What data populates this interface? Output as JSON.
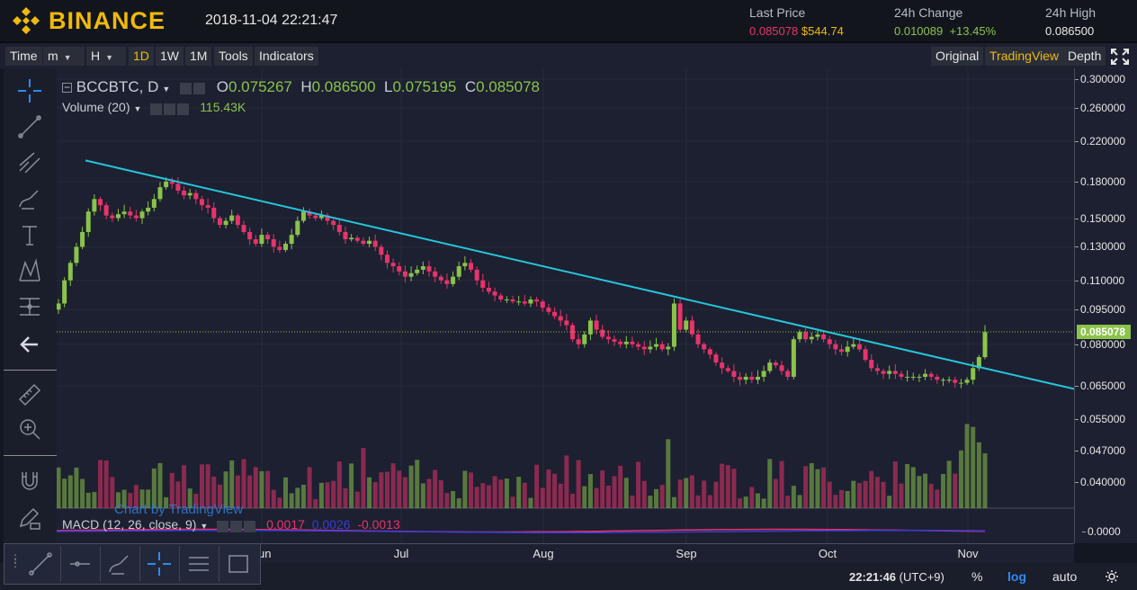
{
  "header": {
    "brand": "BINANCE",
    "datetime": "2018-11-04 22:21:47",
    "last_price_label": "Last Price",
    "last_price_btc": "0.085078",
    "last_price_usd": "$544.74",
    "change_label": "24h Change",
    "change_abs": "0.010089",
    "change_pct": "+13.45%",
    "high_label": "24h High",
    "high_value": "0.086500"
  },
  "toolbar": {
    "time": "Time",
    "minute": "m",
    "hour": "H",
    "d1": "1D",
    "w1": "1W",
    "m1": "1M",
    "tools": "Tools",
    "indicators": "Indicators",
    "original": "Original",
    "tradingview": "TradingView",
    "depth": "Depth"
  },
  "legend": {
    "symbol": "BCCBTC, D",
    "o_label": "O",
    "o_val": "0.075267",
    "h_label": "H",
    "h_val": "0.086500",
    "l_label": "L",
    "l_val": "0.075195",
    "c_label": "C",
    "c_val": "0.085078",
    "volume_label": "Volume (20)",
    "volume_val": "115.43K",
    "macd_label": "MACD (12, 26, close, 9)",
    "macd_v1": "0.0017",
    "macd_v2": "0.0026",
    "macd_v3": "-0.0013",
    "watermark": "Chart by TradingView"
  },
  "price_axis": {
    "ticks": [
      "0.300000",
      "0.260000",
      "0.220000",
      "0.180000",
      "0.150000",
      "0.130000",
      "0.110000",
      "0.095000",
      "0.080000",
      "0.065000",
      "0.055000",
      "0.047000",
      "0.040000"
    ],
    "macd_tick": "0.0000",
    "last": "0.085078"
  },
  "time_axis": {
    "ticks": [
      "Jun",
      "Jul",
      "Aug",
      "Sep",
      "Oct",
      "Nov"
    ]
  },
  "bottom": {
    "clock": "22:21:46",
    "tz": "(UTC+9)",
    "percent": "%",
    "log": "log",
    "auto": "auto"
  },
  "colors": {
    "up": "#8bc34a",
    "down": "#e8336b",
    "trendline": "#26c6da",
    "accent": "#f0b90b"
  },
  "chart_data": {
    "type": "candlestick",
    "symbol": "BCCBTC",
    "interval": "D",
    "scale": "log",
    "x_months": [
      "Jun",
      "Jul",
      "Aug",
      "Sep",
      "Oct",
      "Nov"
    ],
    "ylim": [
      0.065,
      0.3
    ],
    "close_series": [
      0.098,
      0.11,
      0.12,
      0.13,
      0.14,
      0.155,
      0.165,
      0.16,
      0.152,
      0.15,
      0.153,
      0.155,
      0.152,
      0.15,
      0.155,
      0.158,
      0.165,
      0.175,
      0.18,
      0.178,
      0.172,
      0.168,
      0.17,
      0.165,
      0.16,
      0.158,
      0.15,
      0.145,
      0.148,
      0.152,
      0.145,
      0.14,
      0.135,
      0.132,
      0.138,
      0.135,
      0.13,
      0.128,
      0.132,
      0.138,
      0.148,
      0.155,
      0.152,
      0.15,
      0.152,
      0.148,
      0.145,
      0.14,
      0.135,
      0.136,
      0.134,
      0.132,
      0.134,
      0.13,
      0.125,
      0.12,
      0.118,
      0.115,
      0.112,
      0.114,
      0.116,
      0.118,
      0.115,
      0.112,
      0.11,
      0.108,
      0.112,
      0.118,
      0.12,
      0.116,
      0.11,
      0.106,
      0.104,
      0.102,
      0.1,
      0.1,
      0.099,
      0.099,
      0.098,
      0.1,
      0.099,
      0.096,
      0.094,
      0.092,
      0.09,
      0.088,
      0.082,
      0.08,
      0.084,
      0.09,
      0.086,
      0.083,
      0.082,
      0.081,
      0.08,
      0.081,
      0.08,
      0.079,
      0.078,
      0.079,
      0.08,
      0.078,
      0.079,
      0.098,
      0.086,
      0.09,
      0.084,
      0.08,
      0.078,
      0.076,
      0.073,
      0.071,
      0.07,
      0.068,
      0.067,
      0.068,
      0.067,
      0.068,
      0.07,
      0.073,
      0.072,
      0.07,
      0.068,
      0.082,
      0.085,
      0.082,
      0.083,
      0.084,
      0.082,
      0.08,
      0.078,
      0.077,
      0.079,
      0.08,
      0.078,
      0.074,
      0.071,
      0.07,
      0.069,
      0.07,
      0.069,
      0.068,
      0.068,
      0.068,
      0.068,
      0.069,
      0.068,
      0.067,
      0.067,
      0.067,
      0.066,
      0.066,
      0.067,
      0.071,
      0.075,
      0.085
    ],
    "trendline": {
      "start_price": 0.2,
      "end_price": 0.064
    }
  }
}
